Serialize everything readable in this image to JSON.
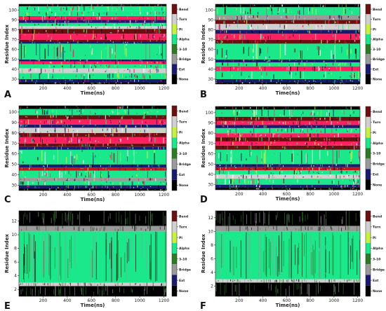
{
  "figure": {
    "colorbar_labels": [
      "Bend",
      "Turn",
      "Pi",
      "Alpha",
      "3-10",
      "Bridge",
      "Ext",
      "None"
    ],
    "colors": {
      "Bend": "#6b1010",
      "Turn": "#d0d0d0",
      "Pi": "#c8f040",
      "Alpha": "#1ae88a",
      "3-10": "#2f7a25",
      "Bridge": "#9a9a9a",
      "Ext": "#1a1a6e",
      "None": "#000000",
      "Hot": "#ff2060",
      "Red": "#c01818"
    }
  },
  "chart_data": [
    {
      "panel": "A",
      "type": "heatmap",
      "xlabel": "Time(ns)",
      "ylabel": "Residue Index",
      "xticks": [
        200,
        400,
        600,
        800,
        1000,
        1200
      ],
      "yticks": [
        30,
        40,
        50,
        60,
        70,
        80,
        90,
        100
      ],
      "xlim": [
        0,
        1220
      ],
      "ylim": [
        25,
        106
      ],
      "bands": [
        [
          25,
          27,
          "None"
        ],
        [
          27,
          30,
          "Ext"
        ],
        [
          30,
          36,
          "Alpha"
        ],
        [
          36,
          41,
          "Turn"
        ],
        [
          41,
          45,
          "Alpha"
        ],
        [
          45,
          48,
          "Hot"
        ],
        [
          48,
          50,
          "Ext"
        ],
        [
          50,
          66,
          "Alpha"
        ],
        [
          66,
          68,
          "Ext"
        ],
        [
          68,
          70,
          "Bend"
        ],
        [
          70,
          76,
          "Hot"
        ],
        [
          76,
          81,
          "Bend"
        ],
        [
          81,
          84,
          "Turn"
        ],
        [
          84,
          87,
          "Alpha"
        ],
        [
          87,
          90,
          "Ext"
        ],
        [
          90,
          94,
          "Hot"
        ],
        [
          94,
          99,
          "Alpha"
        ],
        [
          99,
          104,
          "Alpha"
        ],
        [
          104,
          106,
          "None"
        ]
      ]
    },
    {
      "panel": "B",
      "type": "heatmap",
      "xlabel": "Time(ns)",
      "ylabel": "Residue Index",
      "xticks": [
        200,
        400,
        600,
        800,
        1000,
        1200
      ],
      "yticks": [
        30,
        40,
        50,
        60,
        70,
        80,
        90,
        100
      ],
      "xlim": [
        0,
        1220
      ],
      "ylim": [
        25,
        106
      ],
      "bands": [
        [
          25,
          27,
          "None"
        ],
        [
          27,
          30,
          "Ext"
        ],
        [
          30,
          38,
          "Alpha"
        ],
        [
          38,
          43,
          "Hot"
        ],
        [
          43,
          47,
          "Alpha"
        ],
        [
          47,
          50,
          "Ext"
        ],
        [
          50,
          66,
          "Alpha"
        ],
        [
          66,
          70,
          "Bend"
        ],
        [
          70,
          76,
          "Hot"
        ],
        [
          76,
          80,
          "Ext"
        ],
        [
          80,
          86,
          "Turn"
        ],
        [
          86,
          90,
          "Bend"
        ],
        [
          90,
          95,
          "Bridge"
        ],
        [
          95,
          103,
          "Alpha"
        ],
        [
          103,
          106,
          "None"
        ]
      ]
    },
    {
      "panel": "C",
      "type": "heatmap",
      "xlabel": "Time(ns)",
      "ylabel": "Residue Index",
      "xticks": [
        200,
        400,
        600,
        800,
        1000,
        1200
      ],
      "yticks": [
        30,
        40,
        50,
        60,
        70,
        80,
        90,
        100
      ],
      "xlim": [
        0,
        1220
      ],
      "ylim": [
        25,
        106
      ],
      "bands": [
        [
          25,
          27,
          "None"
        ],
        [
          27,
          30,
          "Ext"
        ],
        [
          30,
          34,
          "Alpha"
        ],
        [
          34,
          37,
          "Bridge"
        ],
        [
          37,
          44,
          "Alpha"
        ],
        [
          44,
          47,
          "Red"
        ],
        [
          47,
          50,
          "Ext"
        ],
        [
          50,
          64,
          "Alpha"
        ],
        [
          64,
          67,
          "Ext"
        ],
        [
          67,
          70,
          "Bend"
        ],
        [
          70,
          76,
          "Hot"
        ],
        [
          76,
          80,
          "Bend"
        ],
        [
          80,
          85,
          "Turn"
        ],
        [
          85,
          88,
          "Ext"
        ],
        [
          88,
          93,
          "Hot"
        ],
        [
          93,
          97,
          "Bend"
        ],
        [
          97,
          103,
          "Alpha"
        ],
        [
          103,
          106,
          "None"
        ]
      ]
    },
    {
      "panel": "D",
      "type": "heatmap",
      "xlabel": "Time(ns)",
      "ylabel": "Residue Index",
      "xticks": [
        200,
        400,
        600,
        800,
        1000,
        1200
      ],
      "yticks": [
        30,
        40,
        50,
        60,
        70,
        80,
        90,
        100
      ],
      "xlim": [
        0,
        1220
      ],
      "ylim": [
        25,
        106
      ],
      "bands": [
        [
          25,
          27,
          "None"
        ],
        [
          27,
          30,
          "Ext"
        ],
        [
          30,
          36,
          "Alpha"
        ],
        [
          36,
          40,
          "Turn"
        ],
        [
          40,
          44,
          "Alpha"
        ],
        [
          44,
          47,
          "Red"
        ],
        [
          47,
          50,
          "Ext"
        ],
        [
          50,
          64,
          "Alpha"
        ],
        [
          64,
          68,
          "Bend"
        ],
        [
          68,
          72,
          "Hot"
        ],
        [
          72,
          76,
          "Bend"
        ],
        [
          76,
          80,
          "Hot"
        ],
        [
          80,
          85,
          "Alpha"
        ],
        [
          85,
          88,
          "Ext"
        ],
        [
          88,
          92,
          "Hot"
        ],
        [
          92,
          96,
          "Bend"
        ],
        [
          96,
          103,
          "Alpha"
        ],
        [
          103,
          106,
          "None"
        ]
      ]
    },
    {
      "panel": "E",
      "type": "heatmap",
      "xlabel": "Time(ns)",
      "ylabel": "Residue Index",
      "xticks": [
        200,
        400,
        600,
        800,
        1000,
        1200
      ],
      "yticks": [
        2,
        4,
        6,
        8,
        10,
        12
      ],
      "xlim": [
        0,
        1220
      ],
      "ylim": [
        1,
        13.5
      ],
      "bands": [
        [
          1,
          2.5,
          "None"
        ],
        [
          2.5,
          3.0,
          "Turn"
        ],
        [
          3.0,
          10.5,
          "Alpha"
        ],
        [
          10.5,
          11.3,
          "Bridge"
        ],
        [
          11.3,
          13.5,
          "None"
        ]
      ]
    },
    {
      "panel": "F",
      "type": "heatmap",
      "xlabel": "Time(ns)",
      "ylabel": "Residue Index",
      "xticks": [
        200,
        400,
        600,
        800,
        1000,
        1200
      ],
      "yticks": [
        2,
        4,
        6,
        8,
        10,
        12
      ],
      "xlim": [
        0,
        1220
      ],
      "ylim": [
        0.5,
        13
      ],
      "bands": [
        [
          0.5,
          2.5,
          "None"
        ],
        [
          2.5,
          3.0,
          "Turn"
        ],
        [
          3.0,
          10.0,
          "Alpha"
        ],
        [
          10.0,
          10.8,
          "Bridge"
        ],
        [
          10.8,
          13,
          "None"
        ]
      ]
    }
  ]
}
